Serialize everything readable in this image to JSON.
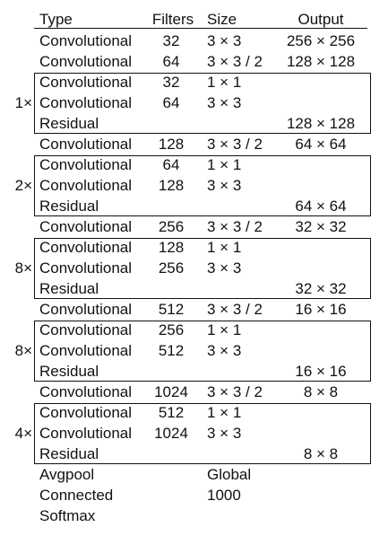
{
  "header": {
    "type": "Type",
    "filters": "Filters",
    "size": "Size",
    "output": "Output"
  },
  "rows": [
    {
      "type": "Convolutional",
      "filters": "32",
      "size": "3 × 3",
      "output": "256 × 256"
    },
    {
      "type": "Convolutional",
      "filters": "64",
      "size": "3 × 3 / 2",
      "output": "128 × 128"
    },
    {
      "type": "Convolutional",
      "filters": "32",
      "size": "1 × 1",
      "output": ""
    },
    {
      "type": "Convolutional",
      "filters": "64",
      "size": "3 × 3",
      "output": ""
    },
    {
      "type": "Residual",
      "filters": "",
      "size": "",
      "output": "128 × 128"
    },
    {
      "type": "Convolutional",
      "filters": "128",
      "size": "3 × 3 / 2",
      "output": "64 × 64"
    },
    {
      "type": "Convolutional",
      "filters": "64",
      "size": "1 × 1",
      "output": ""
    },
    {
      "type": "Convolutional",
      "filters": "128",
      "size": "3 × 3",
      "output": ""
    },
    {
      "type": "Residual",
      "filters": "",
      "size": "",
      "output": "64 × 64"
    },
    {
      "type": "Convolutional",
      "filters": "256",
      "size": "3 × 3 / 2",
      "output": "32 × 32"
    },
    {
      "type": "Convolutional",
      "filters": "128",
      "size": "1 × 1",
      "output": ""
    },
    {
      "type": "Convolutional",
      "filters": "256",
      "size": "3 × 3",
      "output": ""
    },
    {
      "type": "Residual",
      "filters": "",
      "size": "",
      "output": "32 × 32"
    },
    {
      "type": "Convolutional",
      "filters": "512",
      "size": "3 × 3 / 2",
      "output": "16 × 16"
    },
    {
      "type": "Convolutional",
      "filters": "256",
      "size": "1 × 1",
      "output": ""
    },
    {
      "type": "Convolutional",
      "filters": "512",
      "size": "3 × 3",
      "output": ""
    },
    {
      "type": "Residual",
      "filters": "",
      "size": "",
      "output": "16 × 16"
    },
    {
      "type": "Convolutional",
      "filters": "1024",
      "size": "3 × 3 / 2",
      "output": "8 × 8"
    },
    {
      "type": "Convolutional",
      "filters": "512",
      "size": "1 × 1",
      "output": ""
    },
    {
      "type": "Convolutional",
      "filters": "1024",
      "size": "3 × 3",
      "output": ""
    },
    {
      "type": "Residual",
      "filters": "",
      "size": "",
      "output": "8 × 8"
    },
    {
      "type": "Avgpool",
      "filters": "",
      "size": "Global",
      "output": ""
    },
    {
      "type": "Connected",
      "filters": "",
      "size": "1000",
      "output": ""
    },
    {
      "type": "Softmax",
      "filters": "",
      "size": "",
      "output": ""
    }
  ],
  "blocks": [
    {
      "repeat": "1×",
      "first_row": 2
    },
    {
      "repeat": "2×",
      "first_row": 6
    },
    {
      "repeat": "8×",
      "first_row": 10
    },
    {
      "repeat": "8×",
      "first_row": 14
    },
    {
      "repeat": "4×",
      "first_row": 18
    }
  ]
}
